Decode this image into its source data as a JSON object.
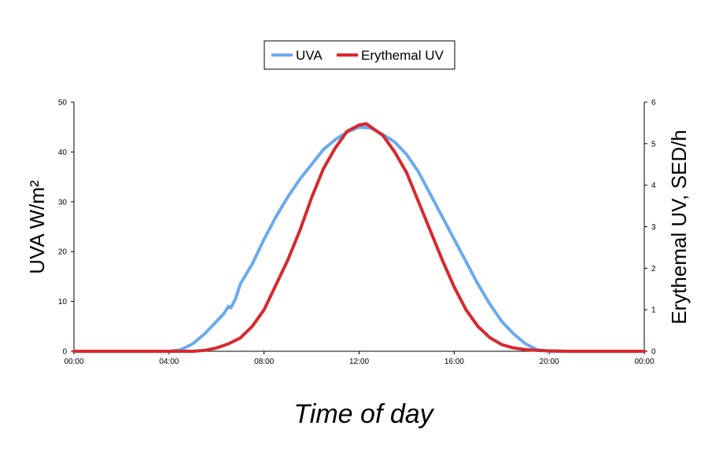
{
  "chart_data": {
    "type": "line",
    "xlabel": "Time of day",
    "ylabel": "UVA W/m²",
    "y2label": "Erythemal UV, SED/h",
    "x_ticks": [
      "00:00",
      "04:00",
      "08:00",
      "12:00",
      "16:00",
      "20:00",
      "00:00"
    ],
    "x_range_hours": [
      0,
      24
    ],
    "y_ticks": [
      "0",
      "10",
      "20",
      "30",
      "40",
      "50"
    ],
    "ylim": [
      0,
      50
    ],
    "y2_ticks": [
      "0",
      "1",
      "2",
      "3",
      "4",
      "5",
      "6"
    ],
    "y2lim": [
      0,
      6
    ],
    "legend_position": "top-center",
    "grid": false,
    "series": [
      {
        "name": "UVA",
        "axis": "left",
        "color": "#6aaaf0",
        "x_hours": [
          0,
          4.0,
          4.5,
          5.0,
          5.5,
          6.0,
          6.3,
          6.5,
          6.6,
          6.8,
          7.0,
          7.5,
          8.0,
          8.5,
          9.0,
          9.5,
          10.0,
          10.5,
          11.0,
          11.5,
          12.0,
          12.5,
          13.0,
          13.5,
          14.0,
          14.5,
          15.0,
          15.5,
          16.0,
          16.5,
          17.0,
          17.5,
          18.0,
          18.5,
          19.0,
          19.5,
          20.0,
          24
        ],
        "values": [
          0,
          0,
          0.3,
          1.5,
          3.5,
          6.0,
          7.5,
          9.0,
          8.7,
          10.5,
          13.5,
          17.5,
          22.5,
          27.0,
          31.0,
          34.5,
          37.5,
          40.5,
          42.5,
          44.0,
          45.0,
          44.8,
          43.5,
          42.0,
          39.5,
          36.0,
          31.5,
          27.0,
          22.5,
          18.0,
          13.5,
          9.5,
          6.0,
          3.5,
          1.5,
          0.3,
          0,
          0
        ]
      },
      {
        "name": "Erythemal UV",
        "axis": "right",
        "color": "#d9272e",
        "x_hours": [
          0,
          5.0,
          5.5,
          6.0,
          6.5,
          7.0,
          7.5,
          8.0,
          8.5,
          9.0,
          9.5,
          10.0,
          10.5,
          11.0,
          11.5,
          12.0,
          12.3,
          12.5,
          13.0,
          13.5,
          14.0,
          14.5,
          15.0,
          15.5,
          16.0,
          16.5,
          17.0,
          17.5,
          18.0,
          18.5,
          19.0,
          19.5,
          20.0,
          20.8,
          24
        ],
        "values": [
          0,
          0,
          0.02,
          0.08,
          0.18,
          0.32,
          0.6,
          1.0,
          1.6,
          2.2,
          2.9,
          3.7,
          4.4,
          4.9,
          5.3,
          5.45,
          5.48,
          5.4,
          5.2,
          4.8,
          4.3,
          3.6,
          2.9,
          2.2,
          1.55,
          1.0,
          0.6,
          0.33,
          0.16,
          0.08,
          0.04,
          0.02,
          0.01,
          0,
          0
        ]
      }
    ]
  }
}
